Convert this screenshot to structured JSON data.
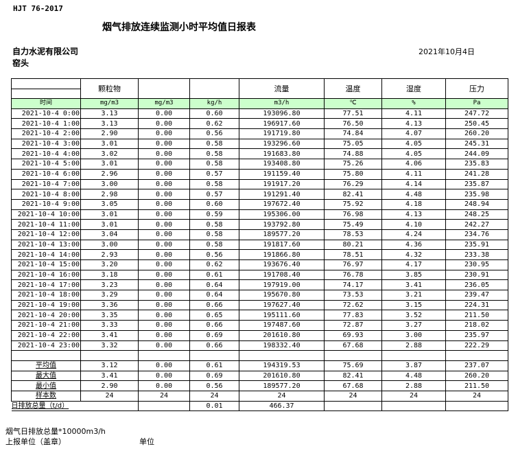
{
  "standard": "HJT  76-2017",
  "title": "烟气排放连续监测小时平均值日报表",
  "company": "自力水泥有限公司",
  "location": "窑头",
  "date": "2021年10月4日",
  "table": {
    "headers": [
      "",
      "颗粒物",
      "",
      "",
      "流量",
      "温度",
      "湿度",
      "压力"
    ],
    "units": [
      "时间",
      "mg/m3",
      "mg/m3",
      "kg/h",
      "m3/h",
      "℃",
      "%",
      "Pa"
    ],
    "rows": [
      [
        "2021-10-4 0:00",
        "3.13",
        "0.00",
        "0.60",
        "193096.80",
        "77.51",
        "4.11",
        "247.72"
      ],
      [
        "2021-10-4 1:00",
        "3.13",
        "0.00",
        "0.62",
        "196917.60",
        "76.50",
        "4.13",
        "250.45"
      ],
      [
        "2021-10-4 2:00",
        "2.90",
        "0.00",
        "0.56",
        "191719.80",
        "74.84",
        "4.07",
        "260.20"
      ],
      [
        "2021-10-4 3:00",
        "3.01",
        "0.00",
        "0.58",
        "193296.60",
        "75.05",
        "4.05",
        "245.31"
      ],
      [
        "2021-10-4 4:00",
        "3.02",
        "0.00",
        "0.58",
        "191683.80",
        "74.88",
        "4.05",
        "244.09"
      ],
      [
        "2021-10-4 5:00",
        "3.01",
        "0.00",
        "0.58",
        "193408.80",
        "75.26",
        "4.06",
        "235.83"
      ],
      [
        "2021-10-4 6:00",
        "2.96",
        "0.00",
        "0.57",
        "191159.40",
        "75.80",
        "4.11",
        "241.28"
      ],
      [
        "2021-10-4 7:00",
        "3.00",
        "0.00",
        "0.58",
        "191917.20",
        "76.29",
        "4.14",
        "235.87"
      ],
      [
        "2021-10-4 8:00",
        "2.98",
        "0.00",
        "0.57",
        "191291.40",
        "82.41",
        "4.48",
        "235.98"
      ],
      [
        "2021-10-4 9:00",
        "3.05",
        "0.00",
        "0.60",
        "197672.40",
        "75.92",
        "4.18",
        "248.94"
      ],
      [
        "2021-10-4 10:00",
        "3.01",
        "0.00",
        "0.59",
        "195306.00",
        "76.98",
        "4.13",
        "248.25"
      ],
      [
        "2021-10-4 11:00",
        "3.01",
        "0.00",
        "0.58",
        "193792.80",
        "75.49",
        "4.10",
        "242.27"
      ],
      [
        "2021-10-4 12:00",
        "3.04",
        "0.00",
        "0.58",
        "189577.20",
        "78.53",
        "4.24",
        "234.76"
      ],
      [
        "2021-10-4 13:00",
        "3.00",
        "0.00",
        "0.58",
        "191817.60",
        "80.21",
        "4.36",
        "235.91"
      ],
      [
        "2021-10-4 14:00",
        "2.93",
        "0.00",
        "0.56",
        "191866.80",
        "78.51",
        "4.32",
        "233.38"
      ],
      [
        "2021-10-4 15:00",
        "3.20",
        "0.00",
        "0.62",
        "193676.40",
        "76.97",
        "4.17",
        "230.95"
      ],
      [
        "2021-10-4 16:00",
        "3.18",
        "0.00",
        "0.61",
        "191708.40",
        "76.78",
        "3.85",
        "230.91"
      ],
      [
        "2021-10-4 17:00",
        "3.23",
        "0.00",
        "0.64",
        "197919.00",
        "74.17",
        "3.41",
        "236.05"
      ],
      [
        "2021-10-4 18:00",
        "3.29",
        "0.00",
        "0.64",
        "195670.80",
        "73.53",
        "3.21",
        "239.47"
      ],
      [
        "2021-10-4 19:00",
        "3.36",
        "0.00",
        "0.66",
        "197627.40",
        "72.62",
        "3.15",
        "224.31"
      ],
      [
        "2021-10-4 20:00",
        "3.35",
        "0.00",
        "0.65",
        "195111.60",
        "77.83",
        "3.52",
        "211.50"
      ],
      [
        "2021-10-4 21:00",
        "3.33",
        "0.00",
        "0.66",
        "197487.60",
        "72.87",
        "3.27",
        "218.02"
      ],
      [
        "2021-10-4 22:00",
        "3.41",
        "0.00",
        "0.69",
        "201610.80",
        "69.93",
        "3.00",
        "235.97"
      ],
      [
        "2021-10-4 23:00",
        "3.32",
        "0.00",
        "0.66",
        "198332.40",
        "67.68",
        "2.88",
        "222.29"
      ]
    ],
    "stats": [
      [
        "平均值",
        "3.12",
        "0.00",
        "0.61",
        "194319.53",
        "75.69",
        "3.87",
        "237.07"
      ],
      [
        "最大值",
        "3.41",
        "0.00",
        "0.69",
        "201610.80",
        "82.41",
        "4.48",
        "260.20"
      ],
      [
        "最小值",
        "2.90",
        "0.00",
        "0.56",
        "189577.20",
        "67.68",
        "2.88",
        "211.50"
      ],
      [
        "样本数",
        "24",
        "24",
        "24",
        "24",
        "24",
        "24",
        "24"
      ]
    ],
    "daily_total": {
      "label": "日排放总量（t/d）",
      "kg_h": "0.01",
      "flow": "466.37"
    }
  },
  "footer": {
    "note": "烟气日排放总量*10000m3/h",
    "reporter": "上报单位（盖章）",
    "unit": "单位"
  },
  "colors": {
    "unit_row_bg": "#ccffcc"
  }
}
